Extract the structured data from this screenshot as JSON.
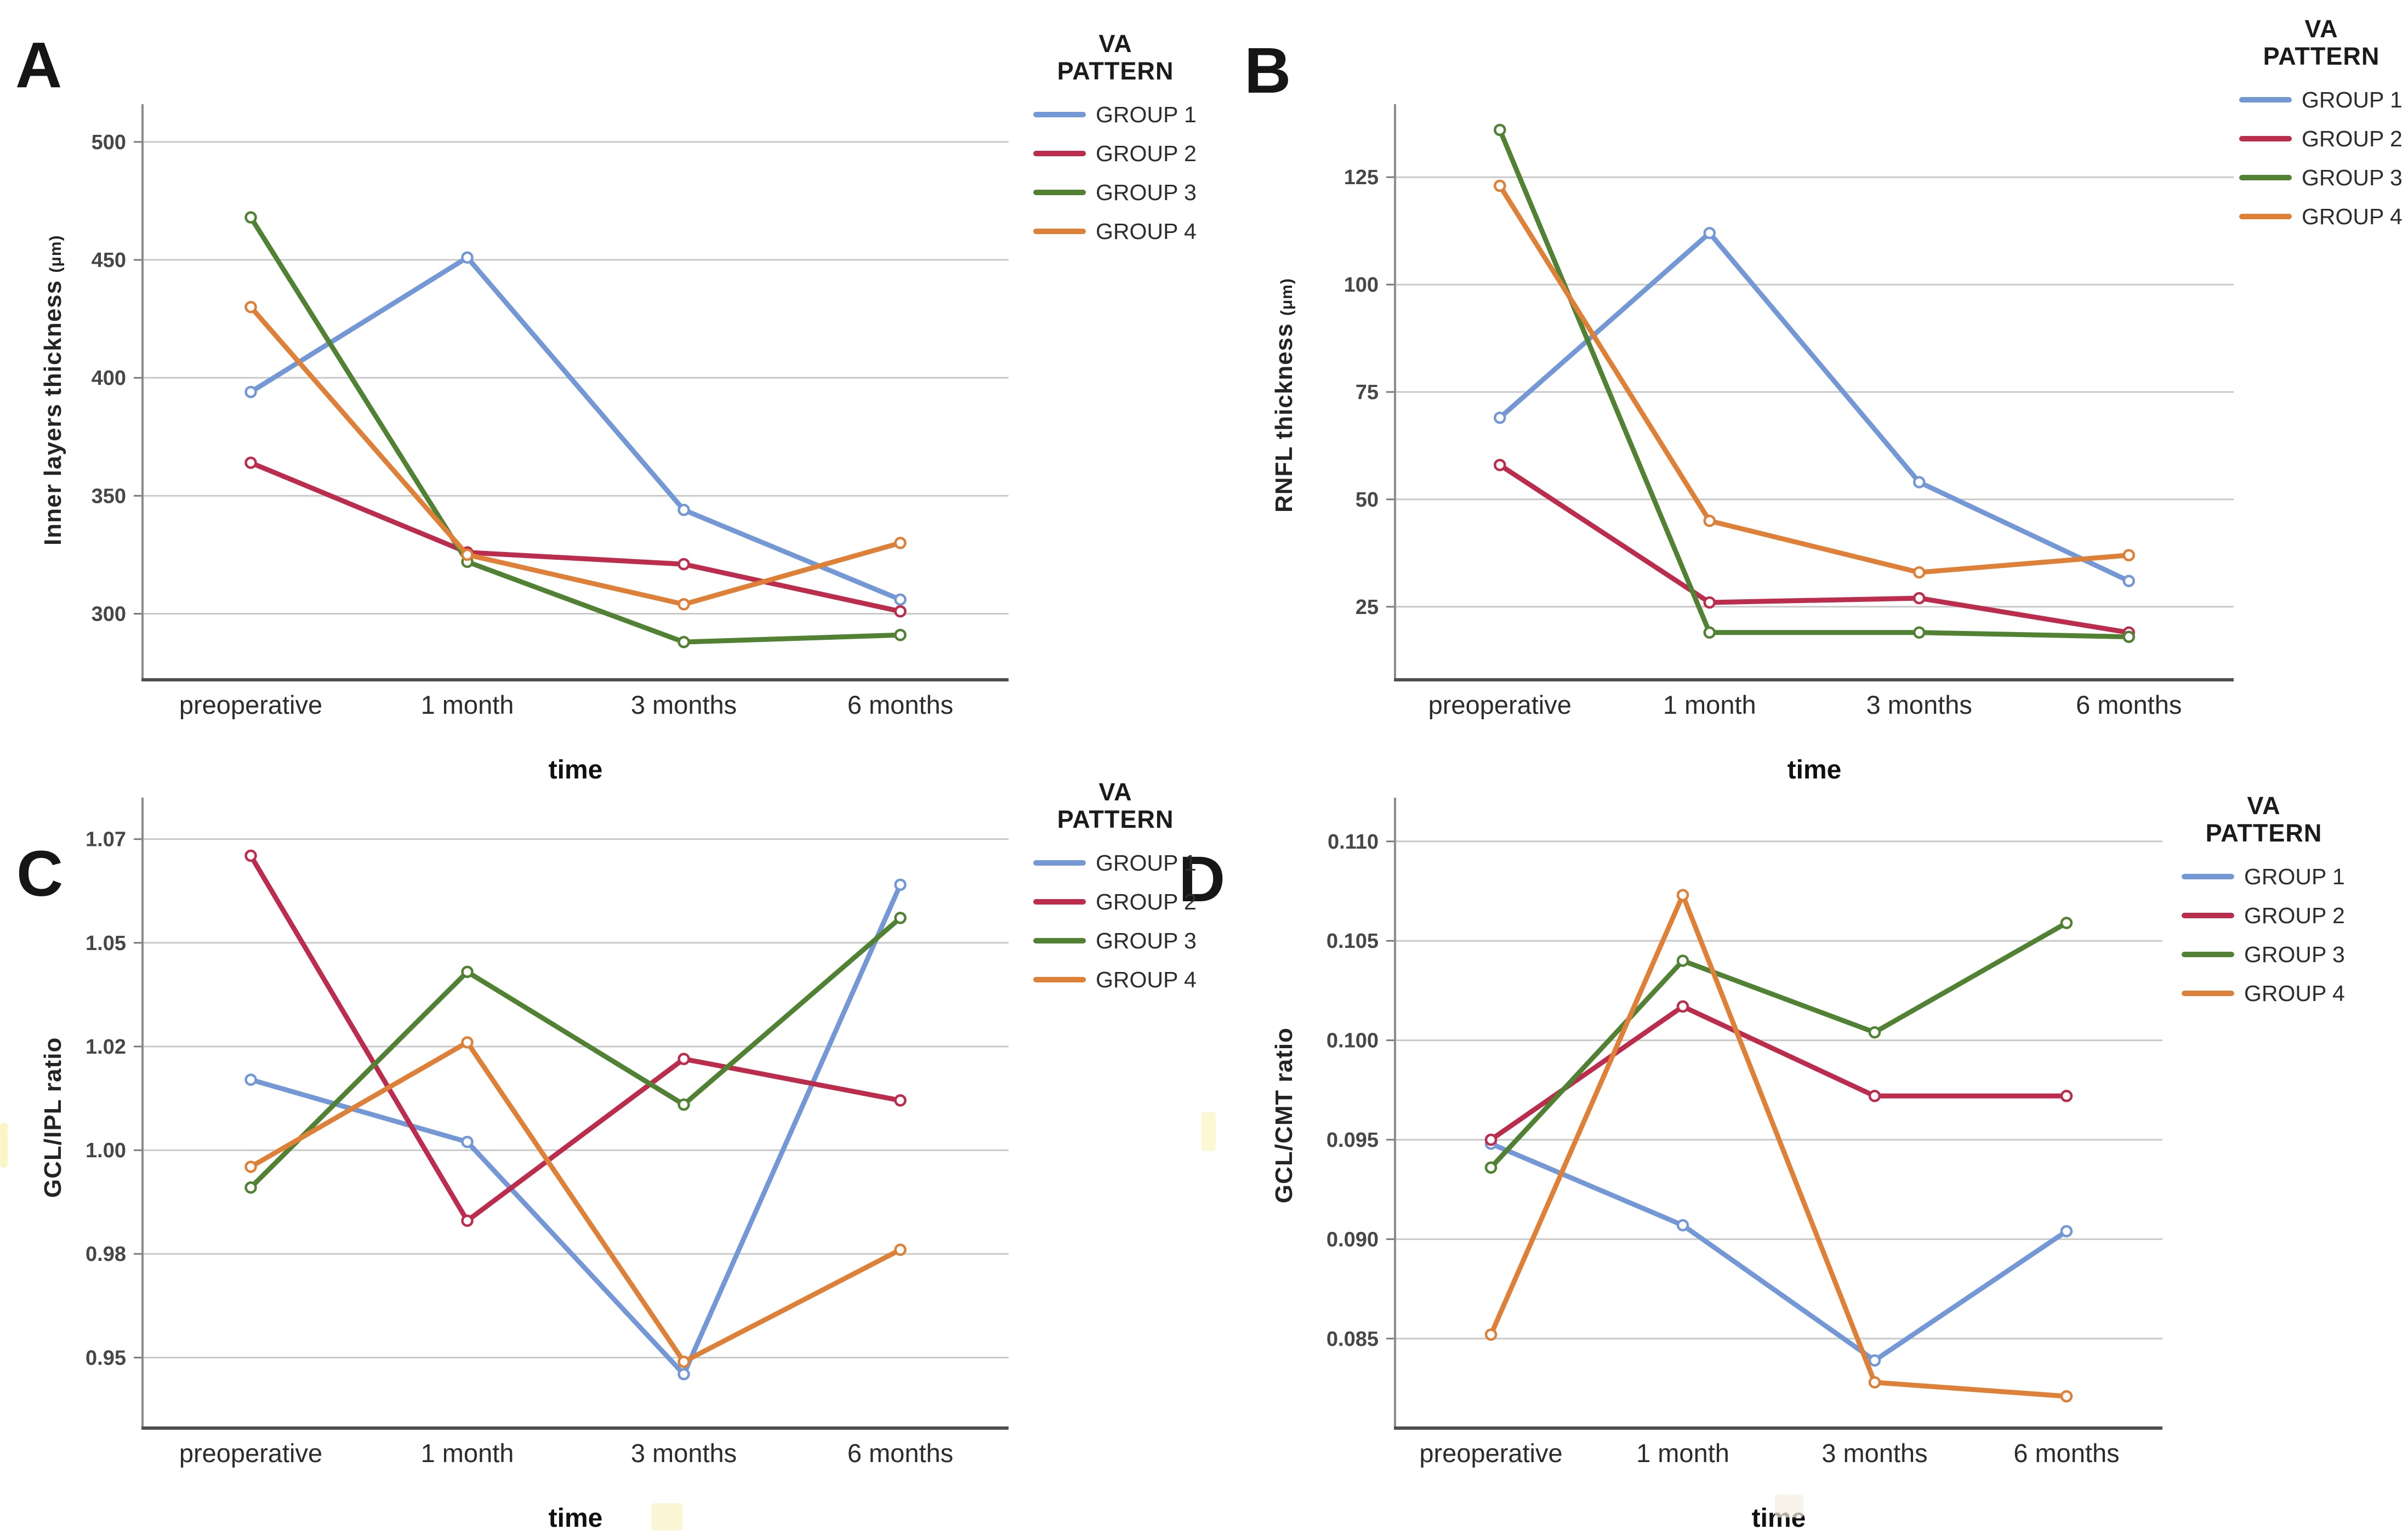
{
  "figure": {
    "background": "#ffffff",
    "grid_color": "#c9c9c9",
    "panel_letters": [
      "A",
      "B",
      "C",
      "D"
    ]
  },
  "legend": {
    "title_line1": "VA",
    "title_line2": "PATTERN",
    "entries": [
      {
        "label": "GROUP 1",
        "color": "#7398D5"
      },
      {
        "label": "GROUP 2",
        "color": "#BC2C4C"
      },
      {
        "label": "GROUP 3",
        "color": "#518233"
      },
      {
        "label": "GROUP 4",
        "color": "#DF8038"
      }
    ]
  },
  "chart_data": [
    {
      "id": "A",
      "type": "line",
      "panel_label": "A",
      "ylabel": "Inner layers thickness",
      "ylabel_unit": "(μm)",
      "xlabel": "time",
      "categories": [
        "preoperative",
        "1 month",
        "3 months",
        "6 months"
      ],
      "ylim": [
        272,
        516
      ],
      "grid": true,
      "legend_position": "right",
      "yticks": [
        {
          "value": 300,
          "label": "300"
        },
        {
          "value": 350,
          "label": "350"
        },
        {
          "value": 400,
          "label": "400"
        },
        {
          "value": 450,
          "label": "450"
        },
        {
          "value": 500,
          "label": "500"
        }
      ],
      "series": [
        {
          "name": "GROUP 1",
          "color": "#7398D5",
          "values": [
            394,
            451,
            344,
            306
          ]
        },
        {
          "name": "GROUP 2",
          "color": "#BC2C4C",
          "values": [
            364,
            326,
            321,
            301
          ]
        },
        {
          "name": "GROUP 3",
          "color": "#518233",
          "values": [
            468,
            322,
            288,
            291
          ]
        },
        {
          "name": "GROUP 4",
          "color": "#DF8038",
          "values": [
            430,
            325,
            304,
            330
          ]
        }
      ]
    },
    {
      "id": "B",
      "type": "line",
      "panel_label": "B",
      "ylabel": "RNFL thickness",
      "ylabel_unit": "(μm)",
      "xlabel": "time",
      "categories": [
        "preoperative",
        "1 month",
        "3 months",
        "6 months"
      ],
      "ylim": [
        8,
        142
      ],
      "grid": true,
      "legend_position": "right",
      "yticks": [
        {
          "value": 25,
          "label": "25"
        },
        {
          "value": 50,
          "label": "50"
        },
        {
          "value": 75,
          "label": "75"
        },
        {
          "value": 100,
          "label": "100"
        },
        {
          "value": 125,
          "label": "125"
        }
      ],
      "series": [
        {
          "name": "GROUP 1",
          "color": "#7398D5",
          "values": [
            69,
            112,
            54,
            31
          ]
        },
        {
          "name": "GROUP 2",
          "color": "#BC2C4C",
          "values": [
            58,
            26,
            27,
            19
          ]
        },
        {
          "name": "GROUP 3",
          "color": "#518233",
          "values": [
            136,
            19,
            19,
            18
          ]
        },
        {
          "name": "GROUP 4",
          "color": "#DF8038",
          "values": [
            123,
            45,
            33,
            37
          ]
        }
      ]
    },
    {
      "id": "C",
      "type": "line",
      "panel_label": "C",
      "ylabel": "GCL/IPL ratio",
      "ylabel_unit": "",
      "xlabel": "time",
      "categories": [
        "preoperative",
        "1 month",
        "3 months",
        "6 months"
      ],
      "ylim": [
        0.933,
        1.085
      ],
      "grid": true,
      "legend_position": "right",
      "yticks": [
        {
          "value": 0.95,
          "label": "0.95"
        },
        {
          "value": 0.975,
          "label": "0.98"
        },
        {
          "value": 1.0,
          "label": "1.00"
        },
        {
          "value": 1.025,
          "label": "1.02"
        },
        {
          "value": 1.05,
          "label": "1.05"
        },
        {
          "value": 1.075,
          "label": "1.07"
        }
      ],
      "series": [
        {
          "name": "GROUP 1",
          "color": "#7398D5",
          "values": [
            1.017,
            1.002,
            0.946,
            1.064
          ]
        },
        {
          "name": "GROUP 2",
          "color": "#BC2C4C",
          "values": [
            1.071,
            0.983,
            1.022,
            1.012
          ]
        },
        {
          "name": "GROUP 3",
          "color": "#518233",
          "values": [
            0.991,
            1.043,
            1.011,
            1.056
          ]
        },
        {
          "name": "GROUP 4",
          "color": "#DF8038",
          "values": [
            0.996,
            1.026,
            0.949,
            0.976
          ]
        }
      ]
    },
    {
      "id": "D",
      "type": "line",
      "panel_label": "D",
      "ylabel": "GCL/CMT ratio",
      "ylabel_unit": "",
      "xlabel": "time",
      "categories": [
        "preoperative",
        "1 month",
        "3 months",
        "6 months"
      ],
      "ylim": [
        0.0805,
        0.1122
      ],
      "grid": true,
      "legend_position": "right",
      "yticks": [
        {
          "value": 0.085,
          "label": "0.085"
        },
        {
          "value": 0.09,
          "label": "0.090"
        },
        {
          "value": 0.095,
          "label": "0.095"
        },
        {
          "value": 0.1,
          "label": "0.100"
        },
        {
          "value": 0.105,
          "label": "0.105"
        },
        {
          "value": 0.11,
          "label": "0.110"
        }
      ],
      "series": [
        {
          "name": "GROUP 1",
          "color": "#7398D5",
          "values": [
            0.0948,
            0.0907,
            0.0839,
            0.0904
          ]
        },
        {
          "name": "GROUP 2",
          "color": "#BC2C4C",
          "values": [
            0.095,
            0.1017,
            0.0972,
            0.0972
          ]
        },
        {
          "name": "GROUP 3",
          "color": "#518233",
          "values": [
            0.0936,
            0.104,
            0.1004,
            0.1059
          ]
        },
        {
          "name": "GROUP 4",
          "color": "#DF8038",
          "values": [
            0.0852,
            0.1073,
            0.0828,
            0.0821
          ]
        }
      ]
    }
  ]
}
